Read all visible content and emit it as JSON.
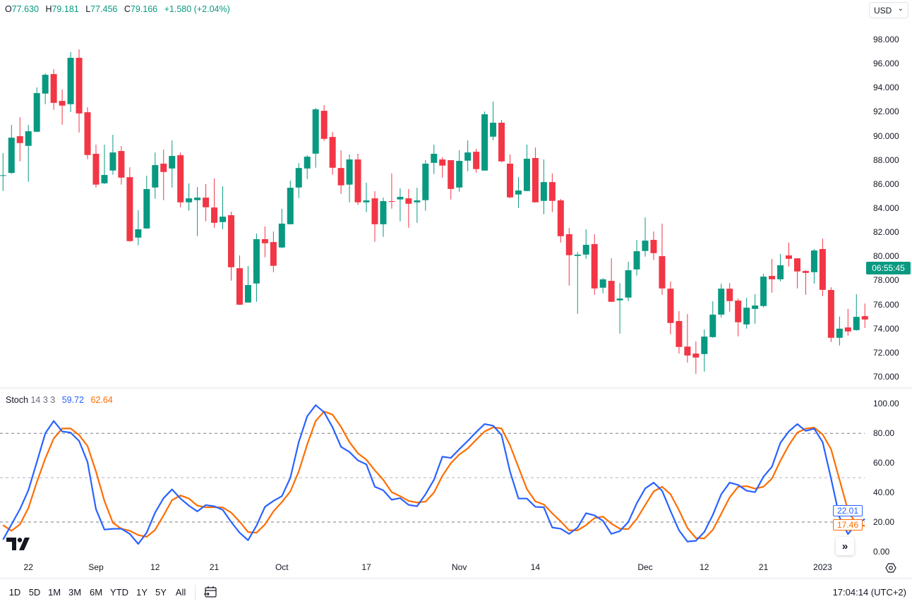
{
  "legend": {
    "o_label": "O",
    "o_value": "77.630",
    "h_label": "H",
    "h_value": "79.181",
    "l_label": "L",
    "l_value": "77.456",
    "c_label": "C",
    "c_value": "79.166",
    "change": "+1.580 (+2.04%)"
  },
  "currency": {
    "selected": "USD",
    "icon": "chevron-down-icon"
  },
  "price_axis": [
    "98.000",
    "96.000",
    "94.000",
    "92.000",
    "90.000",
    "88.000",
    "86.000",
    "84.000",
    "82.000",
    "80.000",
    "78.000",
    "76.000",
    "74.000",
    "72.000",
    "70.000"
  ],
  "countdown": "06:55:45",
  "stoch": {
    "name": "Stoch",
    "params": "14 3 3",
    "k_value": "59.72",
    "d_value": "62.64",
    "k_last": "22.01",
    "d_last": "17.46",
    "axis": [
      "100.00",
      "80.00",
      "60.00",
      "40.00",
      "20.00",
      "0.00"
    ]
  },
  "time_axis": [
    {
      "label": "22",
      "bar": 3
    },
    {
      "label": "Sep",
      "bar": 11
    },
    {
      "label": "12",
      "bar": 18
    },
    {
      "label": "21",
      "bar": 25
    },
    {
      "label": "Oct",
      "bar": 33
    },
    {
      "label": "17",
      "bar": 43
    },
    {
      "label": "Nov",
      "bar": 54
    },
    {
      "label": "14",
      "bar": 63
    },
    {
      "label": "Dec",
      "bar": 76
    },
    {
      "label": "12",
      "bar": 83
    },
    {
      "label": "21",
      "bar": 90
    },
    {
      "label": "2023",
      "bar": 97
    }
  ],
  "toolbar": {
    "ranges": [
      "1D",
      "5D",
      "1M",
      "3M",
      "6M",
      "YTD",
      "1Y",
      "5Y",
      "All"
    ],
    "clock": "17:04:14 (UTC+2)"
  },
  "colors": {
    "up": "#089981",
    "down": "#F23645",
    "k": "#2962FF",
    "d": "#FF6D00",
    "grid_dash": "#787B86"
  },
  "chart_data": {
    "type": "candlestick",
    "price_range": [
      70,
      98
    ],
    "ohlc": [
      [
        86.67,
        88.57,
        85.42,
        86.73
      ],
      [
        86.92,
        90.91,
        86.83,
        89.85
      ],
      [
        89.97,
        91.55,
        87.88,
        89.4
      ],
      [
        89.17,
        90.91,
        86.18,
        90.38
      ],
      [
        90.34,
        94.02,
        90.3,
        93.55
      ],
      [
        93.51,
        95.19,
        92.63,
        95.07
      ],
      [
        95.13,
        95.54,
        92.16,
        92.74
      ],
      [
        92.9,
        93.84,
        90.93,
        92.51
      ],
      [
        92.63,
        96.95,
        91.98,
        96.48
      ],
      [
        96.48,
        97.18,
        90.28,
        91.86
      ],
      [
        91.96,
        92.37,
        88.06,
        88.41
      ],
      [
        88.51,
        89.27,
        85.71,
        85.95
      ],
      [
        86.06,
        89.27,
        86.0,
        86.75
      ],
      [
        87.12,
        90.09,
        86.77,
        88.62
      ],
      [
        88.74,
        89.15,
        85.95,
        86.53
      ],
      [
        86.57,
        87.39,
        81.2,
        81.26
      ],
      [
        81.55,
        83.82,
        80.91,
        82.24
      ],
      [
        82.31,
        86.69,
        82.28,
        85.58
      ],
      [
        85.71,
        88.62,
        84.77,
        87.57
      ],
      [
        87.69,
        88.86,
        84.66,
        87.0
      ],
      [
        87.29,
        89.62,
        85.71,
        88.33
      ],
      [
        88.39,
        88.62,
        84.07,
        84.48
      ],
      [
        84.48,
        86.05,
        83.78,
        84.81
      ],
      [
        84.66,
        85.75,
        81.67,
        84.87
      ],
      [
        84.87,
        85.99,
        82.9,
        84.07
      ],
      [
        84.05,
        86.46,
        82.37,
        82.78
      ],
      [
        82.84,
        85.81,
        82.25,
        83.29
      ],
      [
        83.41,
        83.7,
        77.98,
        79.09
      ],
      [
        79.01,
        80.07,
        75.95,
        75.98
      ],
      [
        76.16,
        79.19,
        76.15,
        77.61
      ],
      [
        77.74,
        81.88,
        76.22,
        81.42
      ],
      [
        81.42,
        82.47,
        79.91,
        81.08
      ],
      [
        81.18,
        82.06,
        78.68,
        79.21
      ],
      [
        80.73,
        83.94,
        80.67,
        82.71
      ],
      [
        82.66,
        86.28,
        82.65,
        85.69
      ],
      [
        85.71,
        87.74,
        84.83,
        87.33
      ],
      [
        87.29,
        88.39,
        86.41,
        88.27
      ],
      [
        88.52,
        92.32,
        87.35,
        92.2
      ],
      [
        92.08,
        92.55,
        89.58,
        89.75
      ],
      [
        89.91,
        90.32,
        86.77,
        87.35
      ],
      [
        87.33,
        88.8,
        85.18,
        85.89
      ],
      [
        85.95,
        88.45,
        84.48,
        88.04
      ],
      [
        88.04,
        88.51,
        84.25,
        84.48
      ],
      [
        84.48,
        86.1,
        83.66,
        84.64
      ],
      [
        84.81,
        85.4,
        81.2,
        82.66
      ],
      [
        82.66,
        84.87,
        81.61,
        84.58
      ],
      [
        84.58,
        86.87,
        83.95,
        84.52
      ],
      [
        84.72,
        85.64,
        82.9,
        84.93
      ],
      [
        84.81,
        85.58,
        82.37,
        84.36
      ],
      [
        84.48,
        85.69,
        82.78,
        84.64
      ],
      [
        84.66,
        87.98,
        83.78,
        87.69
      ],
      [
        87.76,
        89.27,
        86.83,
        88.51
      ],
      [
        88.04,
        88.21,
        86.53,
        87.53
      ],
      [
        87.98,
        87.98,
        84.72,
        85.59
      ],
      [
        85.71,
        88.8,
        85.36,
        87.92
      ],
      [
        87.94,
        89.62,
        87.06,
        88.62
      ],
      [
        88.68,
        88.92,
        86.94,
        87.24
      ],
      [
        87.12,
        92.02,
        87.1,
        91.79
      ],
      [
        89.93,
        92.84,
        89.64,
        91.09
      ],
      [
        91.09,
        91.32,
        87.82,
        87.88
      ],
      [
        87.69,
        88.45,
        84.83,
        84.89
      ],
      [
        85.13,
        86.57,
        84.01,
        85.46
      ],
      [
        85.42,
        89.27,
        85.4,
        88.1
      ],
      [
        88.16,
        89.03,
        84.46,
        84.48
      ],
      [
        84.6,
        88.04,
        83.48,
        86.16
      ],
      [
        86.16,
        86.87,
        83.66,
        84.6
      ],
      [
        84.64,
        84.76,
        81.14,
        81.67
      ],
      [
        81.83,
        82.35,
        77.57,
        80.09
      ],
      [
        80.03,
        80.36,
        75.22,
        80.14
      ],
      [
        80.14,
        82.24,
        79.79,
        80.95
      ],
      [
        81.01,
        81.83,
        76.8,
        77.33
      ],
      [
        77.39,
        78.19,
        76.92,
        78.08
      ],
      [
        77.96,
        79.83,
        76.2,
        76.22
      ],
      [
        76.34,
        77.78,
        73.58,
        76.49
      ],
      [
        76.57,
        79.54,
        76.28,
        78.84
      ],
      [
        78.91,
        81.36,
        78.39,
        80.42
      ],
      [
        80.44,
        83.23,
        79.97,
        81.3
      ],
      [
        81.36,
        82.06,
        79.68,
        80.26
      ],
      [
        80.01,
        82.71,
        76.8,
        77.33
      ],
      [
        77.31,
        77.9,
        73.52,
        74.46
      ],
      [
        74.62,
        75.44,
        71.92,
        72.47
      ],
      [
        72.5,
        75.2,
        71.18,
        71.76
      ],
      [
        71.92,
        72.92,
        70.24,
        71.59
      ],
      [
        71.88,
        73.92,
        70.42,
        73.33
      ],
      [
        73.29,
        76.26,
        73.23,
        75.15
      ],
      [
        75.16,
        77.72,
        74.93,
        77.31
      ],
      [
        77.31,
        77.78,
        75.4,
        76.28
      ],
      [
        76.32,
        76.49,
        73.35,
        74.52
      ],
      [
        74.34,
        76.55,
        73.99,
        75.73
      ],
      [
        75.63,
        76.85,
        74.4,
        75.91
      ],
      [
        75.87,
        78.54,
        75.75,
        78.31
      ],
      [
        78.37,
        79.78,
        76.98,
        78.09
      ],
      [
        78.09,
        80.19,
        77.92,
        79.25
      ],
      [
        80.07,
        81.12,
        79.15,
        79.79
      ],
      [
        79.83,
        79.83,
        77.33,
        78.74
      ],
      [
        78.78,
        78.84,
        76.8,
        78.62
      ],
      [
        78.68,
        80.6,
        77.74,
        80.48
      ],
      [
        80.6,
        81.47,
        76.69,
        77.21
      ],
      [
        77.2,
        77.43,
        72.88,
        73.23
      ],
      [
        73.23,
        74.99,
        72.59,
        73.99
      ],
      [
        74.09,
        75.63,
        73.41,
        73.76
      ],
      [
        73.87,
        76.85,
        73.82,
        74.97
      ],
      [
        75.03,
        76.08,
        74.05,
        74.75
      ]
    ],
    "stoch_range": [
      0,
      100
    ],
    "stoch_levels": [
      80,
      50,
      20
    ],
    "stoch_k": [
      8.1,
      18.4,
      28.7,
      41.5,
      60.6,
      80.0,
      88.4,
      81.3,
      80.5,
      74.9,
      60.6,
      28.7,
      14.9,
      15.4,
      15.5,
      12.0,
      5.2,
      12.8,
      26.4,
      36.2,
      42.1,
      35.9,
      31.1,
      27.2,
      31.5,
      30.7,
      28.3,
      20.0,
      12.8,
      7.7,
      17.6,
      30.3,
      34.3,
      37.5,
      49.9,
      74.1,
      91.6,
      99.1,
      94.3,
      84.1,
      70.9,
      67.4,
      61.7,
      59.0,
      43.9,
      41.5,
      35.1,
      36.2,
      31.6,
      30.7,
      38.8,
      48.6,
      64.2,
      63.4,
      69.3,
      74.9,
      80.9,
      86.3,
      85.2,
      78.9,
      54.2,
      35.9,
      35.9,
      30.3,
      30.0,
      16.3,
      15.5,
      12.0,
      16.3,
      26.0,
      24.5,
      20.8,
      12.0,
      13.9,
      20.0,
      32.7,
      42.7,
      46.7,
      41.2,
      27.5,
      14.4,
      6.8,
      7.3,
      13.3,
      24.8,
      38.8,
      46.7,
      45.1,
      41.2,
      40.2,
      50.7,
      57.4,
      73.6,
      81.3,
      86.3,
      81.7,
      83.2,
      74.1,
      49.4,
      23.2,
      11.9,
      18.9,
      22.01
    ],
    "stoch_d": [
      17.9,
      14.1,
      18.4,
      29.5,
      47.0,
      63.0,
      76.5,
      83.3,
      83.3,
      78.9,
      71.4,
      54.2,
      34.3,
      19.5,
      15.5,
      14.1,
      11.2,
      10.0,
      14.7,
      24.5,
      34.8,
      38.0,
      35.9,
      31.1,
      30.0,
      30.0,
      29.9,
      26.4,
      20.3,
      13.2,
      12.8,
      18.4,
      27.2,
      33.5,
      40.7,
      54.2,
      72.5,
      88.4,
      94.8,
      92.7,
      84.4,
      74.1,
      66.5,
      62.2,
      55.0,
      48.6,
      40.2,
      37.5,
      34.3,
      33.2,
      33.8,
      39.9,
      51.3,
      59.8,
      65.7,
      69.8,
      75.7,
      81.3,
      84.1,
      83.3,
      72.0,
      57.1,
      42.3,
      34.0,
      31.9,
      25.9,
      20.5,
      14.4,
      14.4,
      17.9,
      22.7,
      23.7,
      18.9,
      15.5,
      15.2,
      22.1,
      31.5,
      40.7,
      43.9,
      38.8,
      28.0,
      16.0,
      9.2,
      8.9,
      14.7,
      25.6,
      36.7,
      43.9,
      44.3,
      42.6,
      43.9,
      49.4,
      61.4,
      72.0,
      80.5,
      83.2,
      83.9,
      79.3,
      69.3,
      48.6,
      28.0,
      18.1,
      17.46
    ]
  }
}
